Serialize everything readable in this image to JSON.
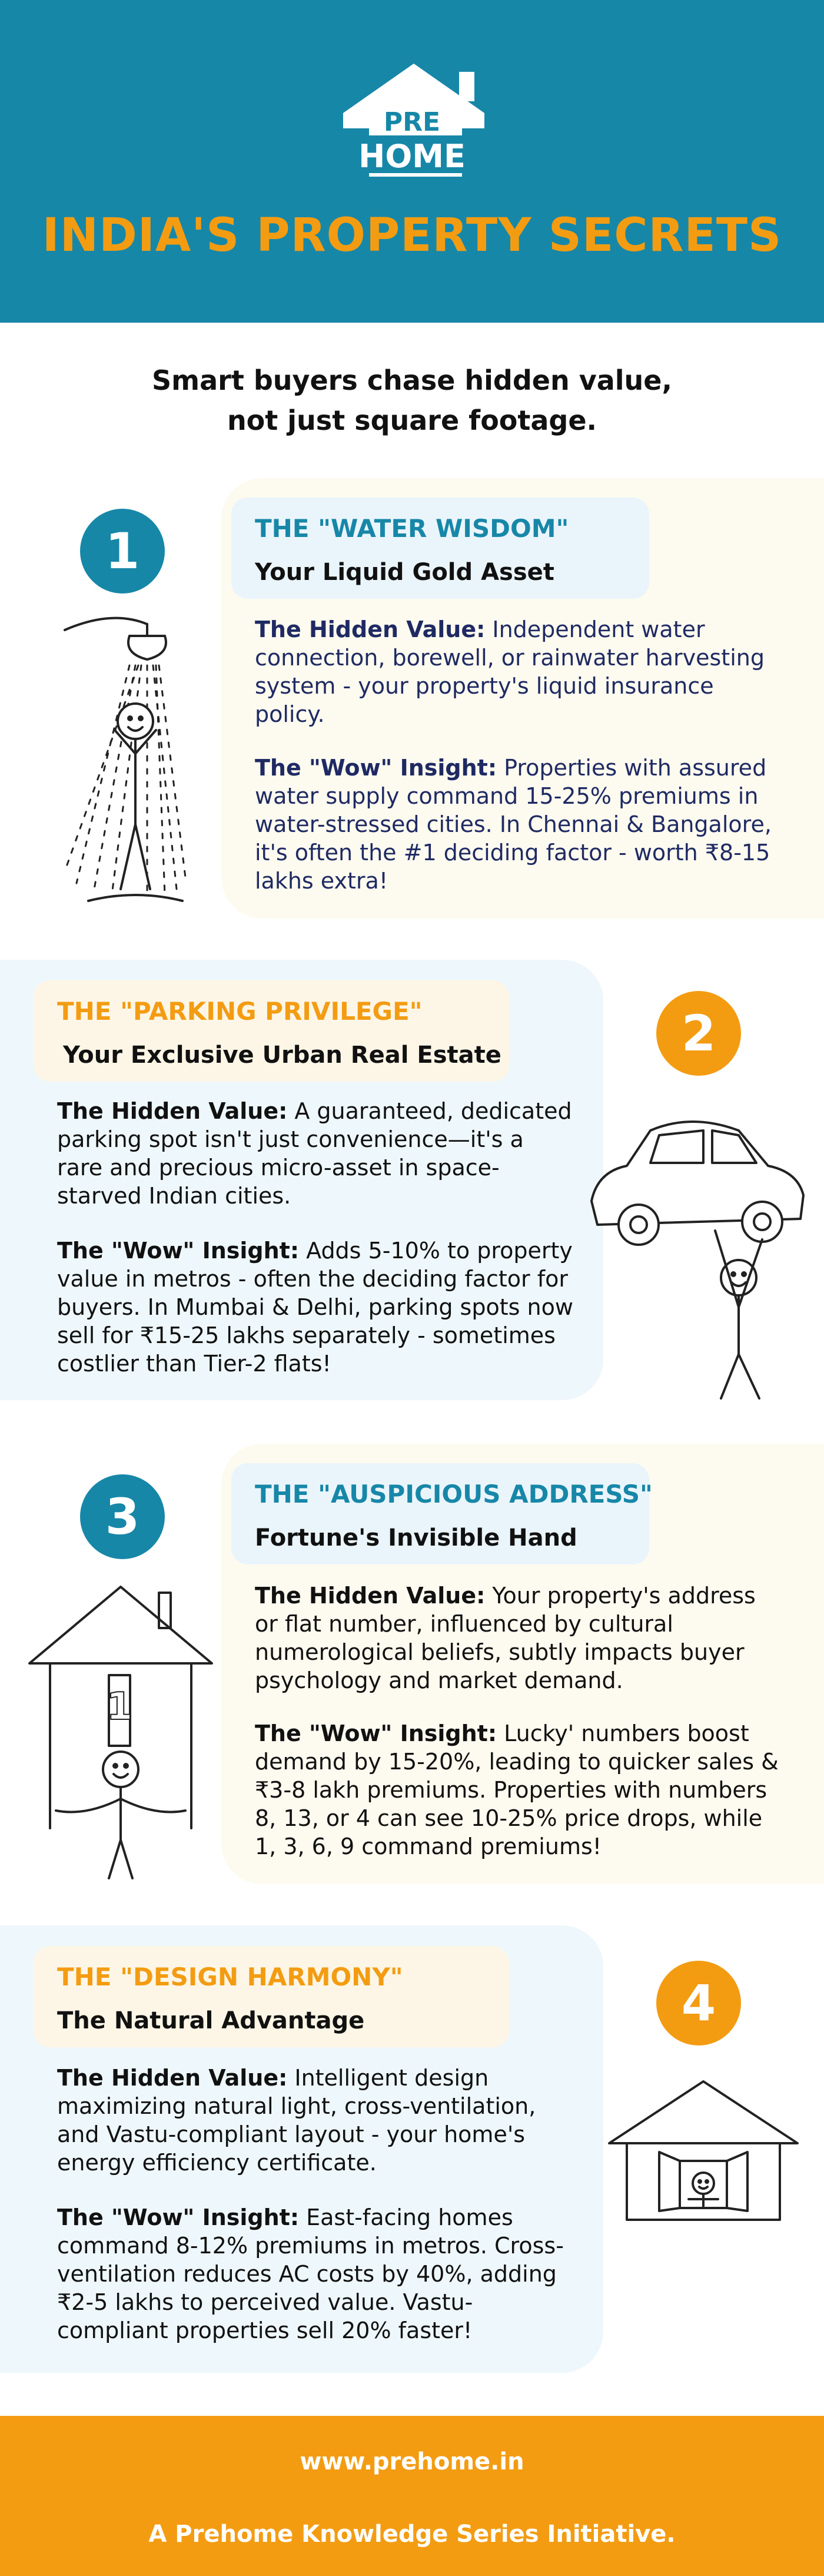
{
  "header": {
    "logo_top": "PRE",
    "logo_bottom": "HOME",
    "title": "INDIA'S PROPERTY SECRETS"
  },
  "tagline": {
    "line1": "Smart buyers chase hidden value,",
    "line2": "not just square footage."
  },
  "secrets": [
    {
      "number": "1",
      "title": "THE \"WATER WISDOM\"",
      "subtitle": "Your Liquid Gold Asset",
      "hidden_label": "The Hidden Value:",
      "hidden_text": " Independent water connection, borewell, or rainwater harvesting system - your property's liquid insurance policy.",
      "wow_label": "The \"Wow\" Insight:",
      "wow_text": " Properties with assured water supply command 15-25% premiums in water-stressed cities. In Chennai & Bangalore, it's often the #1 deciding factor - worth ₹8-15 lakhs extra!"
    },
    {
      "number": "2",
      "title": "THE \"PARKING PRIVILEGE\"",
      "subtitle": "Your Exclusive Urban Real Estate",
      "hidden_label": "The Hidden Value:",
      "hidden_text": " A guaranteed, dedicated parking spot isn't just convenience—it's a rare and precious micro-asset in space-starved Indian cities.",
      "wow_label": "The \"Wow\" Insight:",
      "wow_text": " Adds 5-10% to property value in metros - often the deciding factor for buyers. In Mumbai & Delhi, parking spots now sell for ₹15-25 lakhs separately - sometimes costlier than Tier-2 flats!"
    },
    {
      "number": "3",
      "title": "THE \"AUSPICIOUS ADDRESS\"",
      "subtitle": "Fortune's Invisible Hand",
      "hidden_label": "The Hidden Value:",
      "hidden_text": " Your property's address or flat number, influenced by cultural numerological beliefs, subtly impacts buyer psychology and market demand.",
      "wow_label": "The \"Wow\" Insight:",
      "wow_text": " Lucky' numbers boost demand by 15-20%, leading to quicker sales & ₹3-8 lakh premiums. Properties with numbers 8, 13, or 4 can see 10-25% price drops, while 1, 3, 6, 9 command premiums!"
    },
    {
      "number": "4",
      "title": "THE \"DESIGN HARMONY\"",
      "subtitle": "The Natural Advantage",
      "hidden_label": "The Hidden Value:",
      "hidden_text": " Intelligent design maximizing natural light, cross-ventilation, and Vastu-compliant layout - your home's energy efficiency certificate.",
      "wow_label": "The \"Wow\" Insight:",
      "wow_text": " East-facing homes command 8-12% premiums in metros. Cross-ventilation reduces AC costs by 40%, adding ₹2-5 lakhs to perceived value. Vastu-compliant properties sell 20% faster!"
    }
  ],
  "footer": {
    "url": "www.prehome.in",
    "line": "A Prehome Knowledge Series Initiative."
  },
  "colors": {
    "brand_blue": "#1787a8",
    "brand_orange": "#f39c12",
    "navy_text": "#1f2a63"
  }
}
